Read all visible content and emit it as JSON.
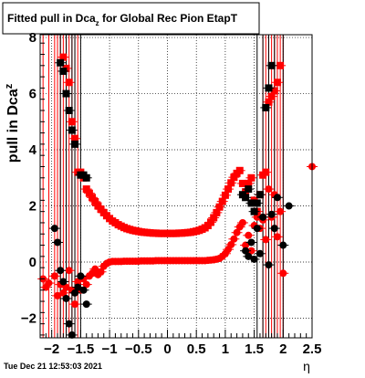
{
  "chart_data": {
    "type": "scatter",
    "title": "Fitted pull in Dca_z for Global Rec Pion EtapT",
    "title_main": "Fitted pull in Dca",
    "title_sub": "z",
    "title_tail": " for Global Rec Pion EtapT",
    "ylabel": "pull in Dca",
    "ylabel_sub": "z",
    "xlabel": "η",
    "timestamp": "Tue Dec 21 12:53:03 2021",
    "xlim": [
      -2.2,
      2.5
    ],
    "ylim": [
      -2.7,
      8.1
    ],
    "x_ticks": [
      -2,
      -1.5,
      -1,
      -0.5,
      0,
      0.5,
      1,
      1.5,
      2,
      2.5
    ],
    "x_tick_labels": [
      "−2",
      "−1.5",
      "−1",
      "−0.5",
      "0",
      "0.5",
      "1",
      "1.5",
      "2",
      "2.5"
    ],
    "y_ticks": [
      -2,
      0,
      2,
      4,
      6,
      8
    ],
    "y_tick_labels": [
      "−2",
      "0",
      "2",
      "4",
      "6",
      "8"
    ],
    "grid": true,
    "colors": {
      "red": "#ff0000",
      "black": "#000000",
      "frame": "#000000"
    },
    "series": [
      {
        "color": "#ff0000",
        "marker": "square",
        "points": [
          [
            -1.8,
            7.3
          ],
          [
            -1.75,
            6.9
          ],
          [
            -1.7,
            6.4
          ],
          [
            -1.65,
            5.0
          ],
          [
            -1.6,
            4.4
          ],
          [
            -1.55,
            3.2
          ],
          [
            -1.5,
            3.2
          ],
          [
            -1.45,
            3.0
          ],
          [
            -1.4,
            2.6
          ],
          [
            -1.35,
            2.45
          ],
          [
            -1.3,
            2.3
          ],
          [
            -1.25,
            2.15
          ],
          [
            -1.2,
            2.0
          ],
          [
            -1.15,
            1.88
          ],
          [
            -1.1,
            1.76
          ],
          [
            -1.05,
            1.65
          ],
          [
            -1.0,
            1.55
          ],
          [
            -0.95,
            1.46
          ],
          [
            -0.9,
            1.4
          ],
          [
            -0.85,
            1.33
          ],
          [
            -0.8,
            1.28
          ],
          [
            -0.75,
            1.23
          ],
          [
            -0.7,
            1.19
          ],
          [
            -0.65,
            1.16
          ],
          [
            -0.6,
            1.13
          ],
          [
            -0.55,
            1.11
          ],
          [
            -0.5,
            1.09
          ],
          [
            -0.45,
            1.07
          ],
          [
            -0.4,
            1.06
          ],
          [
            -0.35,
            1.05
          ],
          [
            -0.3,
            1.04
          ],
          [
            -0.25,
            1.03
          ],
          [
            -0.2,
            1.03
          ],
          [
            -0.15,
            1.02
          ],
          [
            -0.1,
            1.02
          ],
          [
            -0.05,
            1.02
          ],
          [
            0.0,
            1.02
          ],
          [
            0.05,
            1.02
          ],
          [
            0.1,
            1.02
          ],
          [
            0.15,
            1.02
          ],
          [
            0.2,
            1.03
          ],
          [
            0.25,
            1.03
          ],
          [
            0.3,
            1.04
          ],
          [
            0.35,
            1.05
          ],
          [
            0.4,
            1.06
          ],
          [
            0.45,
            1.08
          ],
          [
            0.5,
            1.1
          ],
          [
            0.55,
            1.13
          ],
          [
            0.6,
            1.17
          ],
          [
            0.65,
            1.22
          ],
          [
            0.7,
            1.3
          ],
          [
            0.75,
            1.42
          ],
          [
            0.8,
            1.58
          ],
          [
            0.85,
            1.76
          ],
          [
            0.9,
            1.96
          ],
          [
            0.95,
            2.16
          ],
          [
            1.0,
            2.38
          ],
          [
            1.05,
            2.6
          ],
          [
            1.1,
            2.82
          ],
          [
            1.15,
            3.02
          ],
          [
            1.2,
            3.16
          ],
          [
            1.25,
            3.26
          ],
          [
            1.3,
            2.8
          ],
          [
            1.35,
            2.5
          ],
          [
            1.4,
            2.8
          ],
          [
            1.45,
            3.0
          ],
          [
            1.5,
            2.2
          ],
          [
            1.55,
            1.8
          ],
          [
            1.6,
            2.4
          ],
          [
            1.65,
            3.1
          ],
          [
            1.7,
            3.2
          ],
          [
            1.75,
            5.7
          ],
          [
            1.8,
            5.9
          ],
          [
            1.85,
            6.1
          ],
          [
            1.9,
            6.4
          ],
          [
            1.95,
            7.0
          ]
        ]
      },
      {
        "color": "#ff0000",
        "marker": "circle",
        "points": [
          [
            -2.15,
            -0.6
          ],
          [
            -2.1,
            -0.9
          ],
          [
            -2.05,
            -0.75
          ],
          [
            -1.95,
            -0.5
          ],
          [
            -1.9,
            -1.2
          ],
          [
            -1.85,
            -0.8
          ],
          [
            -1.8,
            -1.1
          ],
          [
            -1.75,
            -0.9
          ],
          [
            -1.7,
            -0.3
          ],
          [
            -1.65,
            -1.0
          ],
          [
            -1.6,
            -1.5
          ],
          [
            -1.55,
            -0.7
          ],
          [
            -1.5,
            -1.0
          ],
          [
            -1.45,
            -0.6
          ],
          [
            -1.4,
            -0.8
          ],
          [
            -1.35,
            -0.5
          ],
          [
            -1.3,
            -0.4
          ],
          [
            -1.25,
            -0.25
          ],
          [
            -1.2,
            -0.45
          ],
          [
            -1.15,
            -0.35
          ],
          [
            -1.1,
            -0.15
          ],
          [
            -1.05,
            -0.05
          ],
          [
            -1.0,
            0.0
          ],
          [
            -0.95,
            0.02
          ],
          [
            -0.9,
            0.02
          ],
          [
            -0.85,
            0.02
          ],
          [
            -0.8,
            0.02
          ],
          [
            -0.75,
            0.03
          ],
          [
            -0.7,
            0.03
          ],
          [
            -0.65,
            0.03
          ],
          [
            -0.6,
            0.03
          ],
          [
            -0.55,
            0.03
          ],
          [
            -0.5,
            0.03
          ],
          [
            -0.45,
            0.04
          ],
          [
            -0.4,
            0.04
          ],
          [
            -0.35,
            0.04
          ],
          [
            -0.3,
            0.04
          ],
          [
            -0.25,
            0.04
          ],
          [
            -0.2,
            0.05
          ],
          [
            -0.15,
            0.05
          ],
          [
            -0.1,
            0.05
          ],
          [
            -0.05,
            0.05
          ],
          [
            0.0,
            0.05
          ],
          [
            0.05,
            0.05
          ],
          [
            0.1,
            0.05
          ],
          [
            0.15,
            0.05
          ],
          [
            0.2,
            0.05
          ],
          [
            0.25,
            0.05
          ],
          [
            0.3,
            0.05
          ],
          [
            0.35,
            0.05
          ],
          [
            0.4,
            0.05
          ],
          [
            0.45,
            0.05
          ],
          [
            0.5,
            0.05
          ],
          [
            0.55,
            0.05
          ],
          [
            0.6,
            0.05
          ],
          [
            0.65,
            0.05
          ],
          [
            0.7,
            0.06
          ],
          [
            0.75,
            0.07
          ],
          [
            0.8,
            0.08
          ],
          [
            0.85,
            0.1
          ],
          [
            0.9,
            0.13
          ],
          [
            0.95,
            0.2
          ],
          [
            1.0,
            0.3
          ],
          [
            1.05,
            0.45
          ],
          [
            1.1,
            0.62
          ],
          [
            1.15,
            0.82
          ],
          [
            1.2,
            1.05
          ],
          [
            1.25,
            1.25
          ],
          [
            1.3,
            1.4
          ],
          [
            1.35,
            0.6
          ],
          [
            1.4,
            0.95
          ],
          [
            1.45,
            0.4
          ],
          [
            1.5,
            1.3
          ],
          [
            1.55,
            1.6
          ],
          [
            1.6,
            1.2
          ],
          [
            1.65,
            1.5
          ],
          [
            1.7,
            0.8
          ],
          [
            1.75,
            2.6
          ],
          [
            1.8,
            1.6
          ],
          [
            1.85,
            2.4
          ],
          [
            1.9,
            0.9
          ],
          [
            1.95,
            1.8
          ],
          [
            2.0,
            -0.4
          ],
          [
            2.5,
            3.4
          ]
        ]
      },
      {
        "color": "#000000",
        "marker": "square",
        "points": [
          [
            -1.85,
            7.1
          ],
          [
            -1.8,
            6.8
          ],
          [
            -1.75,
            6.0
          ],
          [
            -1.7,
            5.4
          ],
          [
            -1.65,
            4.7
          ],
          [
            -1.6,
            4.2
          ],
          [
            -1.5,
            3.1
          ],
          [
            -1.45,
            3.1
          ],
          [
            -1.4,
            3.0
          ],
          [
            1.3,
            2.4
          ],
          [
            1.35,
            2.3
          ],
          [
            1.4,
            2.6
          ],
          [
            1.45,
            2.1
          ],
          [
            1.5,
            1.8
          ],
          [
            1.55,
            2.1
          ],
          [
            1.6,
            2.4
          ],
          [
            1.7,
            5.5
          ],
          [
            1.75,
            6.2
          ],
          [
            1.8,
            7.0
          ]
        ]
      },
      {
        "color": "#000000",
        "marker": "circle",
        "points": [
          [
            -1.95,
            1.2
          ],
          [
            -1.9,
            0.7
          ],
          [
            -1.85,
            -0.3
          ],
          [
            -1.8,
            -0.7
          ],
          [
            -1.75,
            -1.3
          ],
          [
            -1.7,
            -2.2
          ],
          [
            -1.65,
            -2.6
          ],
          [
            -1.6,
            -1.1
          ],
          [
            -1.55,
            -0.9
          ],
          [
            -1.5,
            -0.5
          ],
          [
            -1.45,
            -1.0
          ],
          [
            -1.4,
            -1.5
          ],
          [
            1.35,
            0.4
          ],
          [
            1.4,
            0.2
          ],
          [
            1.45,
            0.7
          ],
          [
            1.5,
            0.1
          ],
          [
            1.55,
            1.2
          ],
          [
            1.6,
            0.3
          ],
          [
            1.65,
            1.6
          ],
          [
            1.75,
            -0.1
          ],
          [
            1.8,
            1.7
          ],
          [
            1.85,
            1.2
          ],
          [
            1.9,
            2.3
          ],
          [
            2.0,
            0.6
          ],
          [
            2.1,
            2.0
          ]
        ]
      }
    ],
    "error_bars": {
      "color": "#ff0000",
      "x": [
        -2.15,
        -2.05,
        -1.95,
        -1.9,
        -1.85,
        -1.8,
        -1.75,
        -1.7,
        -1.65,
        -1.6,
        -1.55,
        1.65,
        1.7,
        1.75,
        1.8,
        1.85,
        1.9,
        1.95,
        2.0
      ],
      "y_range": [
        -2.7,
        8.1
      ]
    },
    "black_error_bars": {
      "color": "#000000",
      "x": [
        -1.85,
        -1.75,
        -1.65,
        -1.6,
        -1.5,
        1.55,
        1.65,
        1.75,
        1.85,
        2.0
      ],
      "y_range": [
        -2.7,
        8.1
      ]
    }
  }
}
